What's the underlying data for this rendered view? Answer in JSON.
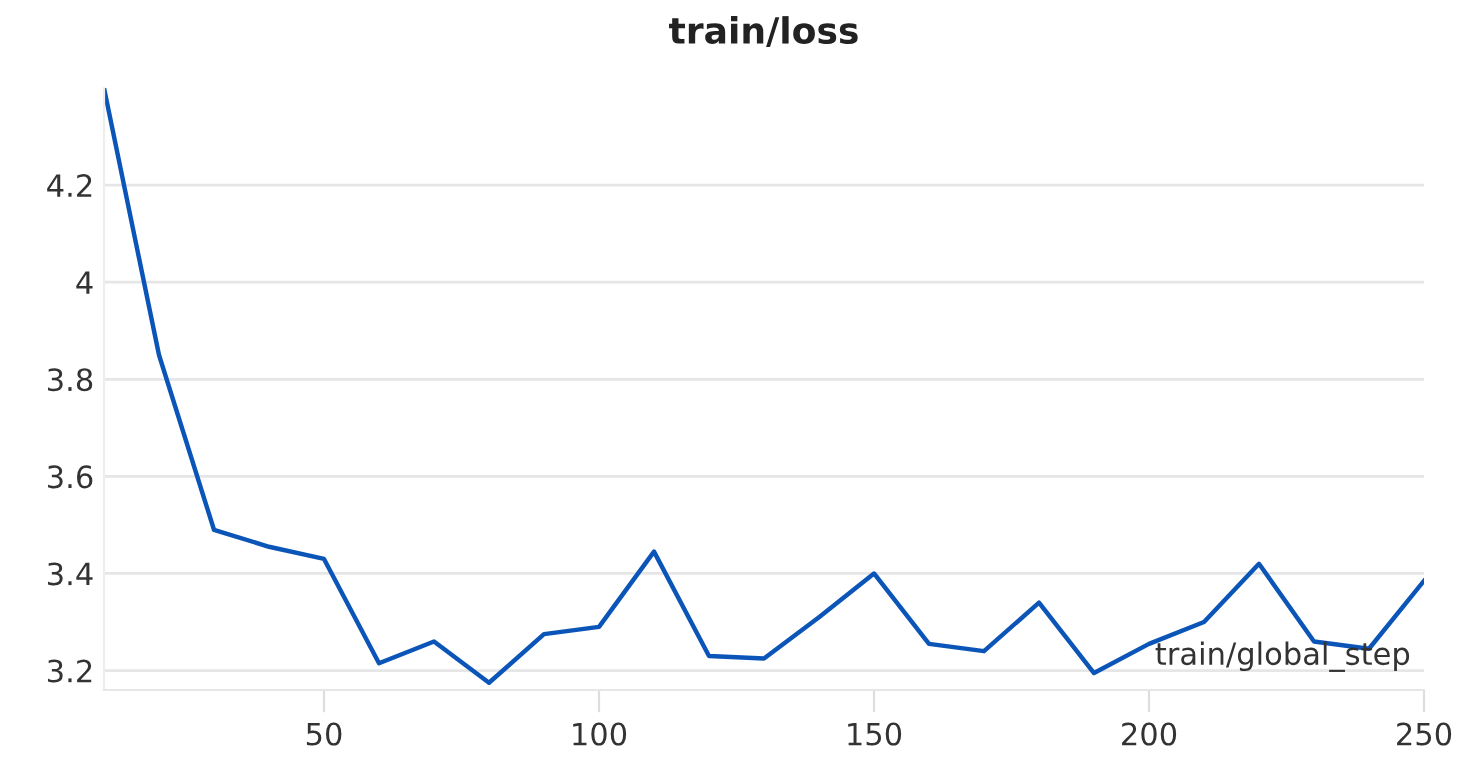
{
  "chart_data": {
    "type": "line",
    "title": "train/loss",
    "xlabel": "train/global_step",
    "x": [
      10,
      20,
      30,
      40,
      50,
      60,
      70,
      80,
      90,
      100,
      110,
      120,
      130,
      140,
      150,
      160,
      170,
      180,
      190,
      200,
      210,
      220,
      230,
      240,
      250
    ],
    "series": [
      {
        "color": "#0b55b8",
        "values": [
          4.4,
          3.85,
          3.49,
          3.455,
          3.43,
          3.215,
          3.26,
          3.175,
          3.275,
          3.29,
          3.445,
          3.23,
          3.225,
          3.31,
          3.4,
          3.255,
          3.24,
          3.34,
          3.195,
          3.255,
          3.3,
          3.42,
          3.26,
          3.245,
          3.385
        ]
      }
    ],
    "xlim": [
      10,
      250
    ],
    "ylim": [
      3.16,
      4.4
    ],
    "xticks": [
      50,
      100,
      150,
      200,
      250
    ],
    "yticks": [
      3.2,
      3.4,
      3.6,
      3.8,
      4,
      4.2
    ],
    "grid": "y",
    "marker": "none",
    "line_style": "solid"
  }
}
